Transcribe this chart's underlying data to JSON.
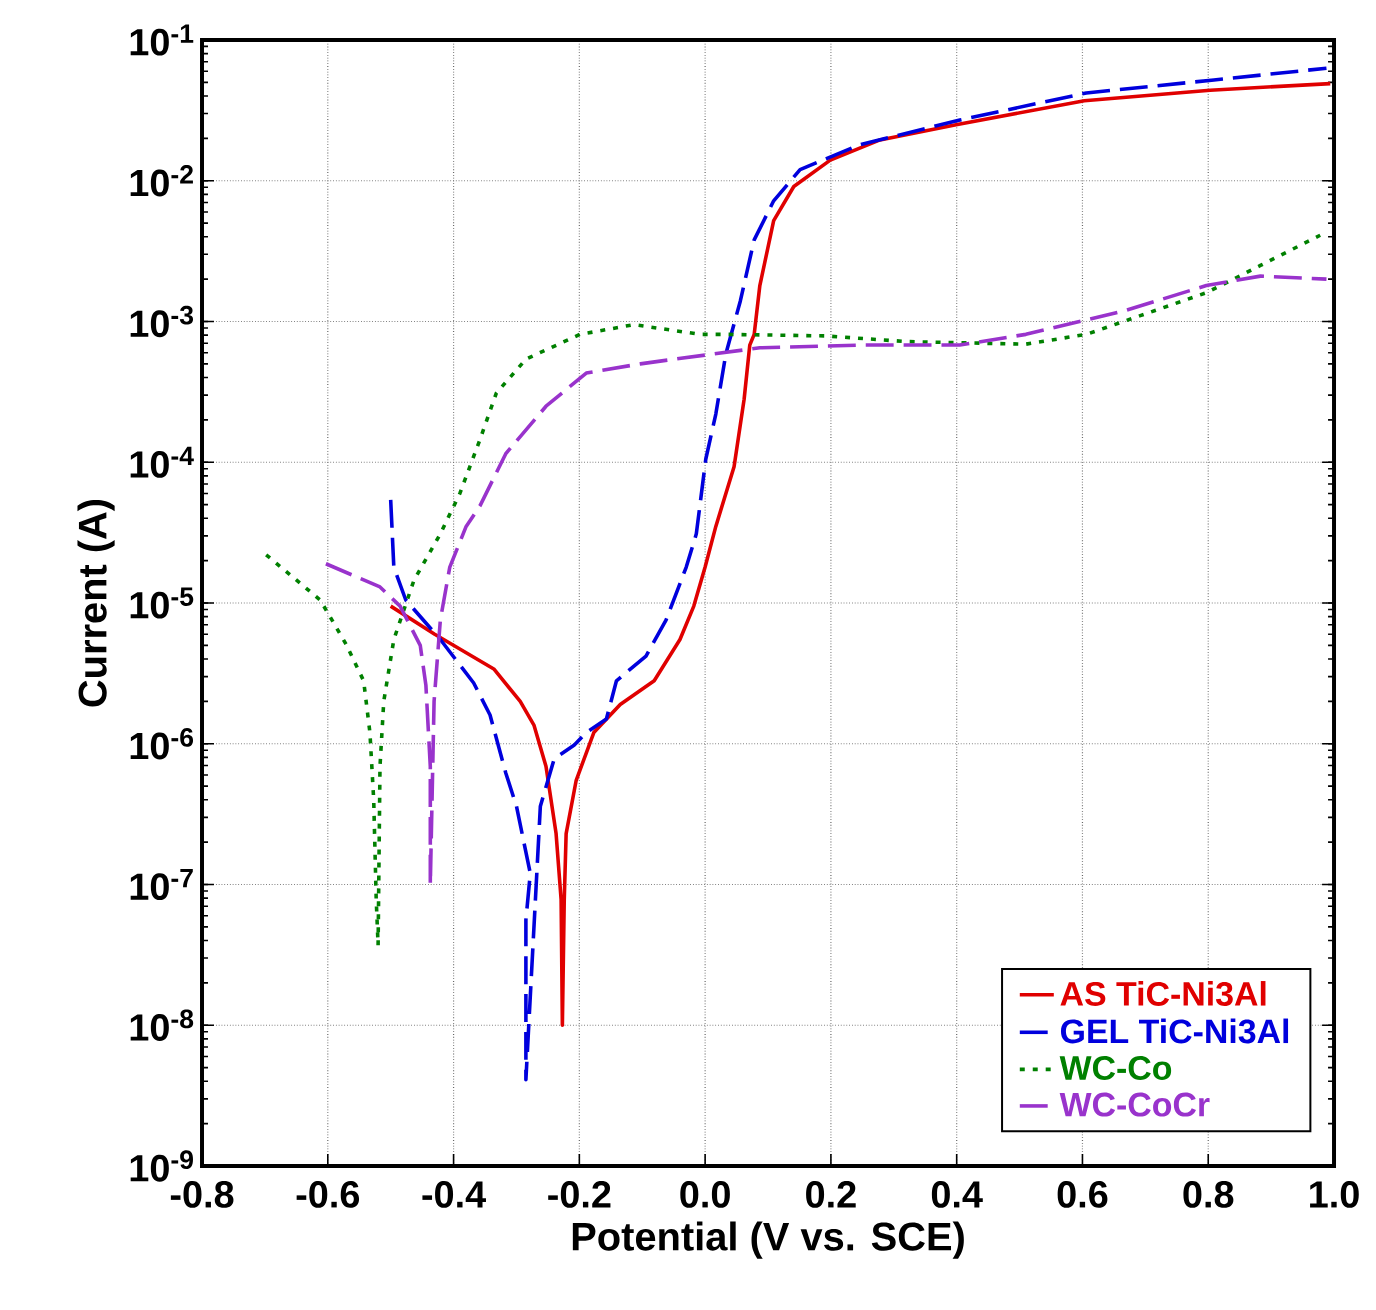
{
  "chart_data": {
    "type": "line",
    "xlabel": "Potential (V vs. SCE)",
    "ylabel": "Current (A)",
    "log": "y",
    "grid": true,
    "legend": "bottom right",
    "xlim": [
      -0.8,
      1.0
    ],
    "ylim": [
      1e-09,
      0.1
    ],
    "xticks": [
      {
        "value": -0.8,
        "label": "-0.8"
      },
      {
        "value": -0.6,
        "label": "-0.6"
      },
      {
        "value": -0.4,
        "label": "-0.4"
      },
      {
        "value": -0.2,
        "label": "-0.2"
      },
      {
        "value": 0,
        "label": "0.0"
      },
      {
        "value": 0.2,
        "label": "0.2"
      },
      {
        "value": 0.4,
        "label": "0.4"
      },
      {
        "value": 0.6,
        "label": "0.6"
      },
      {
        "value": 0.8,
        "label": "0.8"
      },
      {
        "value": 1.0,
        "label": "1.0"
      }
    ],
    "yticks": [
      {
        "value": 1e-09,
        "label": "10$^{-9}$"
      },
      {
        "value": 1e-08,
        "label": "10$^{-8}$"
      },
      {
        "value": 1e-07,
        "label": "10$^{-7}$"
      },
      {
        "value": 1e-06,
        "label": "10$^{-6}$"
      },
      {
        "value": 1e-05,
        "label": "10$^{-5}$"
      },
      {
        "value": 0.0001,
        "label": "10$^{-4}$"
      },
      {
        "value": 0.001,
        "label": "10$^{-3}$"
      },
      {
        "value": 0.01,
        "label": "10$^{-2}$"
      },
      {
        "value": 0.1,
        "label": "10$^{-1}$"
      }
    ],
    "series": [
      {
        "name": "AS TiC-Ni3Al",
        "color": "#e00000",
        "line_style": "solid",
        "x": [
          -0.5,
          -0.43,
          -0.336,
          -0.294,
          -0.272,
          -0.253,
          -0.237,
          -0.229,
          -0.227,
          -0.224,
          -0.221,
          -0.205,
          -0.177,
          -0.135,
          -0.081,
          -0.04,
          -0.018,
          0.0,
          0.017,
          0.046,
          0.062,
          0.071,
          0.078,
          0.087,
          0.109,
          0.141,
          0.199,
          0.278,
          0.399,
          0.603,
          0.803,
          0.994
        ],
        "values": [
          9.5e-06,
          6e-06,
          3.4e-06,
          2e-06,
          1.35e-06,
          6.9e-07,
          2.3e-07,
          7.8e-08,
          1e-08,
          7.8e-08,
          2.3e-07,
          5.5e-07,
          1.2e-06,
          1.9e-06,
          2.8e-06,
          5.5e-06,
          9.5e-06,
          1.8e-05,
          3.5e-05,
          9.3e-05,
          0.00028,
          0.00068,
          0.00081,
          0.0018,
          0.0052,
          0.0091,
          0.014,
          0.0195,
          0.025,
          0.037,
          0.044,
          0.049
        ]
      },
      {
        "name": "GEL TiC-Ni3Al",
        "color": "#0000dd",
        "line_style": "dashed",
        "x": [
          -0.5,
          -0.495,
          -0.476,
          -0.421,
          -0.368,
          -0.342,
          -0.317,
          -0.3,
          -0.278,
          -0.285,
          -0.285,
          -0.262,
          -0.24,
          -0.208,
          -0.189,
          -0.157,
          -0.141,
          -0.094,
          -0.062,
          -0.03,
          -0.014,
          0.001,
          0.017,
          0.033,
          0.056,
          0.078,
          0.109,
          0.151,
          0.246,
          0.405,
          0.606,
          0.809,
          0.988
        ],
        "values": [
          5.4e-05,
          1.8e-05,
          1.05e-05,
          5.5e-06,
          2.7e-06,
          1.6e-06,
          6.2e-07,
          3.6e-07,
          1.2e-07,
          5.6e-08,
          4.1e-09,
          3.6e-07,
          7.8e-07,
          9.8e-07,
          1.2e-06,
          1.5e-06,
          2.8e-06,
          4.2e-06,
          7.6e-06,
          1.8e-05,
          3.1e-05,
          0.000105,
          0.00022,
          0.00059,
          0.0014,
          0.0038,
          0.0072,
          0.012,
          0.018,
          0.027,
          0.042,
          0.052,
          0.063
        ]
      },
      {
        "name": "WC-Co",
        "color": "#008000",
        "line_style": "dotted",
        "x": [
          -0.698,
          -0.612,
          -0.571,
          -0.543,
          -0.533,
          -0.527,
          -0.523,
          -0.52,
          -0.517,
          -0.511,
          -0.495,
          -0.463,
          -0.421,
          -0.39,
          -0.358,
          -0.332,
          -0.285,
          -0.199,
          -0.113,
          -0.008,
          0.033,
          0.192,
          0.32,
          0.51,
          0.606,
          0.692,
          0.797,
          0.883,
          0.978
        ],
        "values": [
          2.2e-05,
          1.05e-05,
          5.1e-06,
          2.8e-06,
          1.2e-06,
          4e-07,
          7.8e-08,
          3.7e-08,
          6.9e-07,
          2e-06,
          5.5e-06,
          1.45e-05,
          3.1e-05,
          6e-05,
          0.000145,
          0.00031,
          0.00054,
          0.00081,
          0.00095,
          0.00081,
          0.00081,
          0.00079,
          0.00072,
          0.00069,
          0.00081,
          0.0011,
          0.0016,
          0.0025,
          0.0041
        ]
      },
      {
        "name": "WC-CoCr",
        "color": "#9933cc",
        "line_style": "dashed",
        "x": [
          -0.603,
          -0.517,
          -0.485,
          -0.453,
          -0.444,
          -0.437,
          -0.437,
          -0.431,
          -0.421,
          -0.406,
          -0.38,
          -0.358,
          -0.317,
          -0.253,
          -0.189,
          -0.103,
          -0.049,
          0.087,
          0.246,
          0.405,
          0.51,
          0.669,
          0.797,
          0.883,
          0.988
        ],
        "values": [
          1.9e-05,
          1.3e-05,
          9.5e-06,
          5e-06,
          2.6e-06,
          6.9e-07,
          1e-07,
          2e-06,
          7.6e-06,
          1.8e-05,
          3.5e-05,
          4.9e-05,
          0.000115,
          0.00025,
          0.00043,
          0.0005,
          0.00054,
          0.00065,
          0.00068,
          0.00068,
          0.00081,
          0.0012,
          0.0018,
          0.0021,
          0.002
        ]
      }
    ]
  }
}
